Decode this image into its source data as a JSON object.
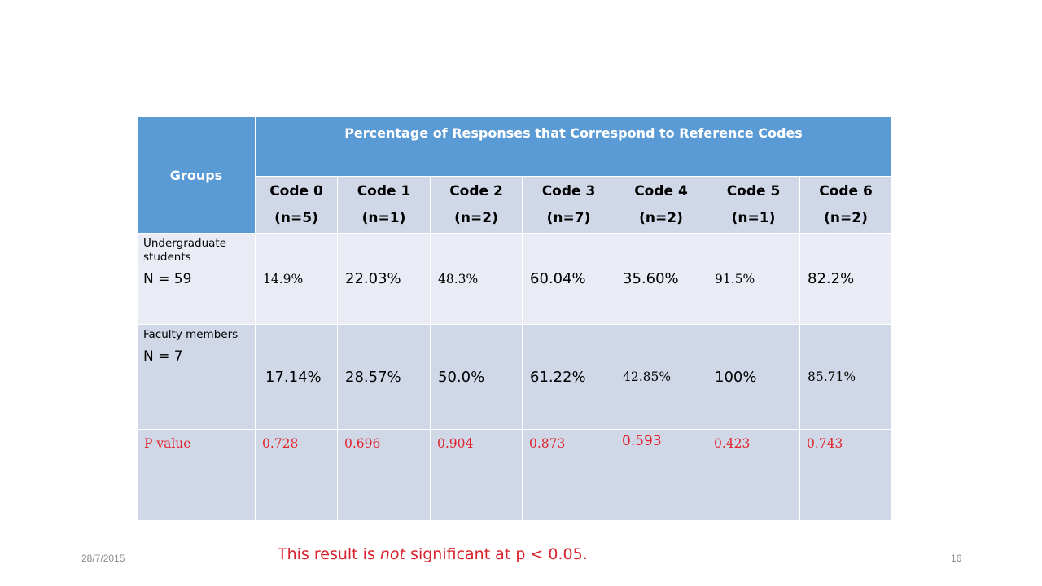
{
  "table": {
    "groups_header": "Groups",
    "title_header": "Percentage of  Responses that Correspond to Reference Codes",
    "codes": [
      {
        "code": "Code 0",
        "n": "(n=5)"
      },
      {
        "code": "Code 1",
        "n": "(n=1)"
      },
      {
        "code": "Code 2",
        "n": "(n=2)"
      },
      {
        "code": "Code 3",
        "n": "(n=7)"
      },
      {
        "code": "Code 4",
        "n": "(n=2)"
      },
      {
        "code": "Code 5",
        "n": "(n=1)"
      },
      {
        "code": "Code 6",
        "n": "(n=2)"
      }
    ],
    "rows": [
      {
        "label": "Undergraduate students",
        "n_label": "N = 59",
        "values": [
          "14.9%",
          "22.03%",
          "48.3%",
          "60.04%",
          "35.60%",
          "91.5%",
          "82.2%"
        ]
      },
      {
        "label": "Faculty members",
        "n_label": "N = 7",
        "values": [
          "17.14%",
          "28.57%",
          "50.0%",
          "61.22%",
          "42.85%",
          "100%",
          "85.71%"
        ]
      }
    ],
    "p_row": {
      "label": "P value",
      "values": [
        "0.728",
        "0.696",
        "0.904",
        "0.873",
        "0.593",
        "0.423",
        "0.743"
      ]
    }
  },
  "note": {
    "before": "This result is ",
    "emphasis": "not",
    "after": " significant at p < 0.05."
  },
  "footer": {
    "date": "28/7/2015",
    "page_number": "16"
  },
  "colors": {
    "header_blue": "#5b9bd5",
    "row_light": "#e9ecf4",
    "row_dark": "#d0d8e8",
    "p_value_red": "#e0252d",
    "note_red": "#d9212b"
  }
}
